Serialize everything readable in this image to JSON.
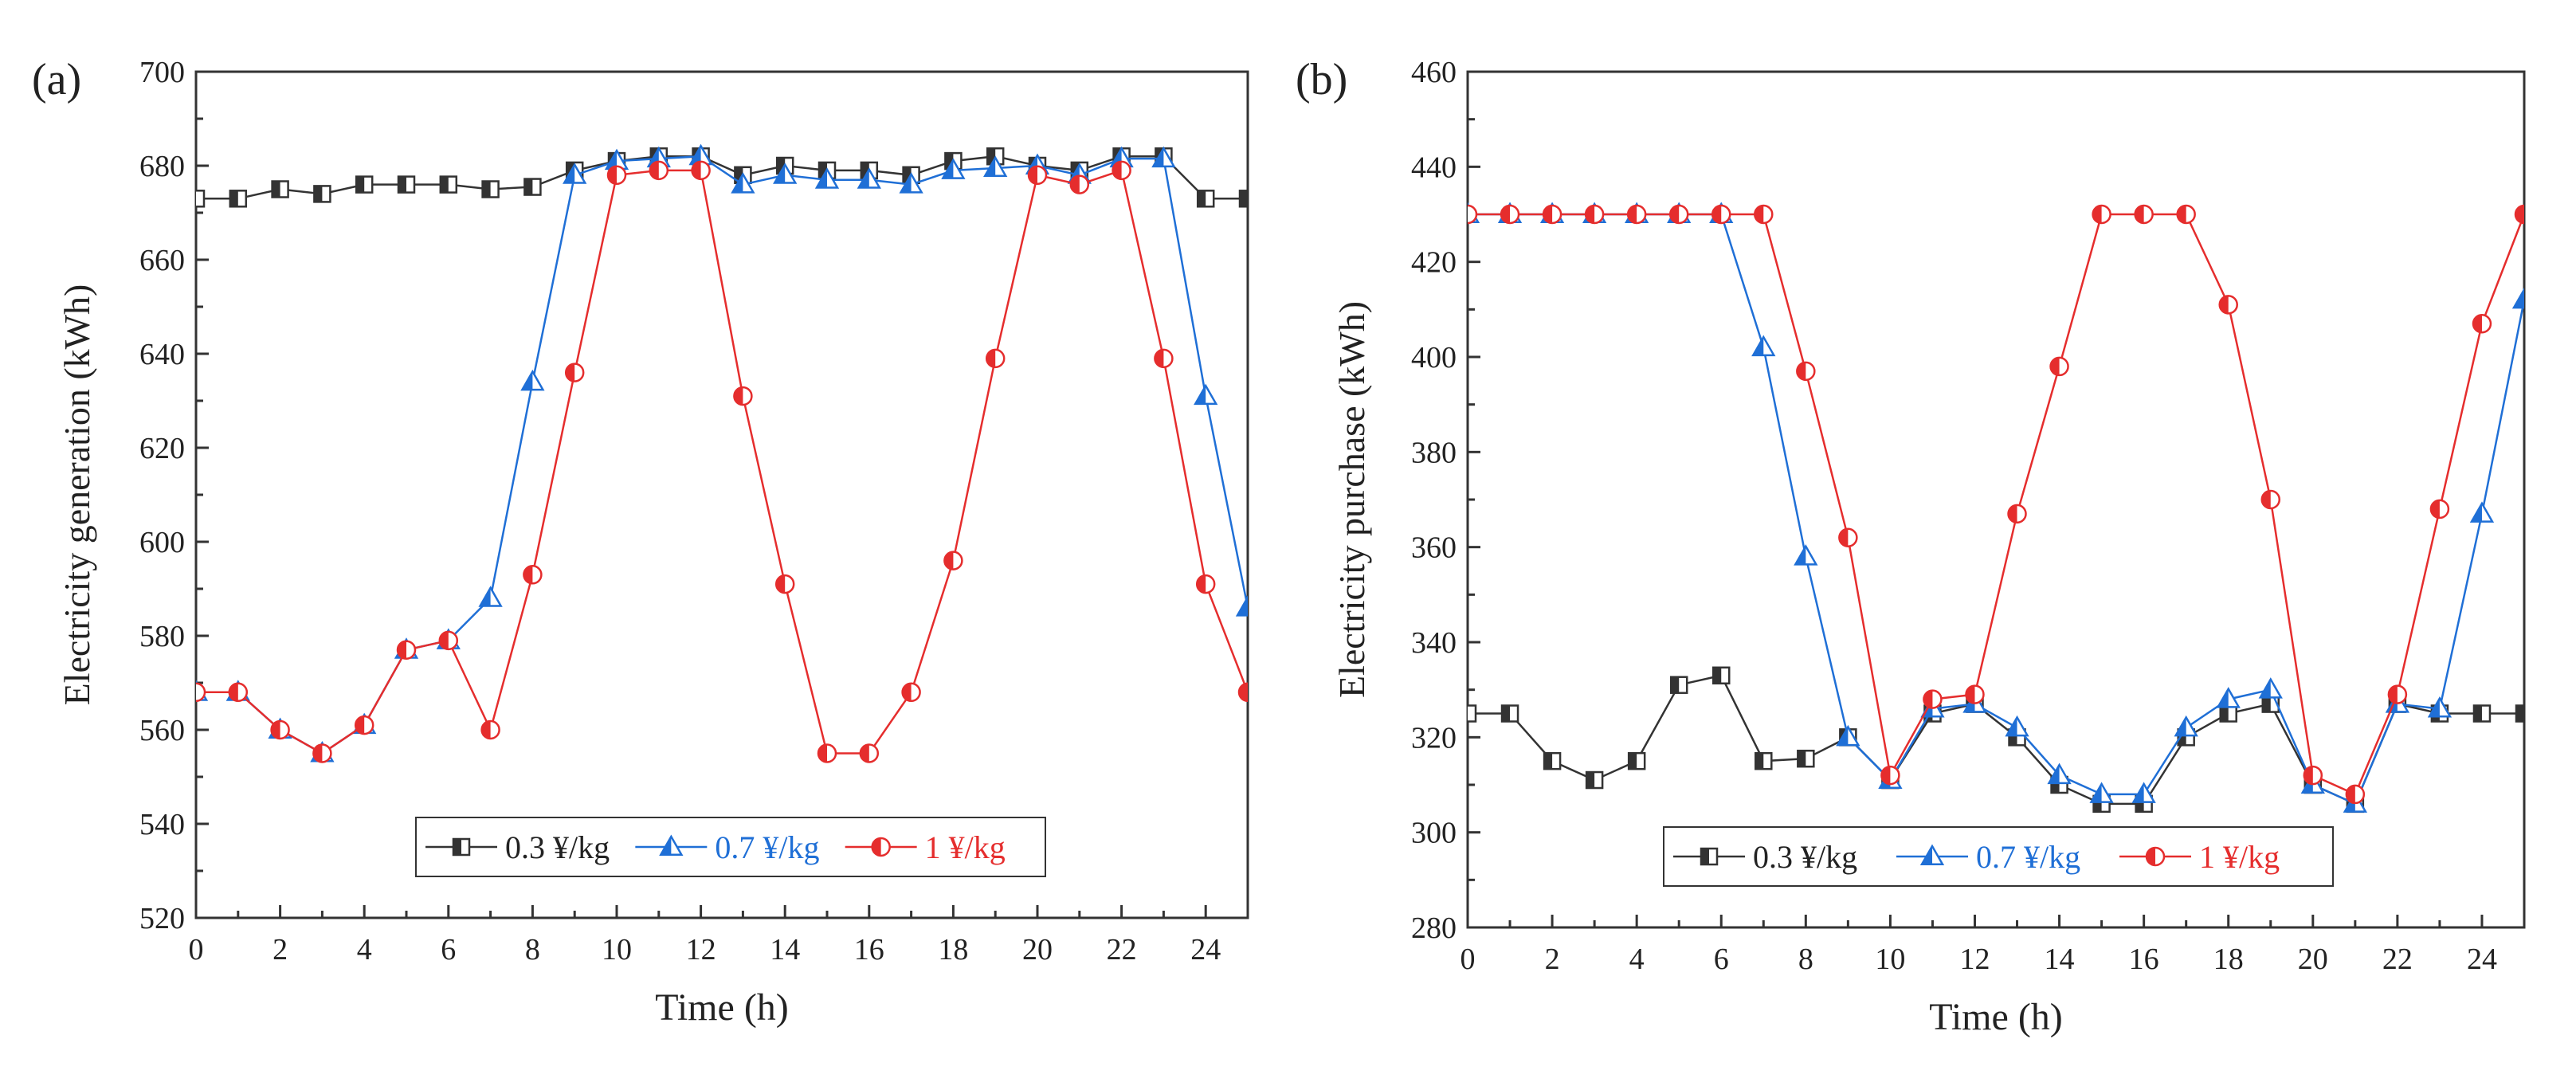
{
  "chart_data": [
    {
      "type": "line",
      "panel_label": "(a)",
      "xlabel": "Time (h)",
      "ylabel": "Electricity generation  (kWh)",
      "xlim": [
        0,
        25
      ],
      "ylim": [
        520,
        700
      ],
      "xticks": [
        0,
        2,
        4,
        6,
        8,
        10,
        12,
        14,
        16,
        18,
        20,
        22,
        24
      ],
      "yticks": [
        520,
        540,
        560,
        580,
        600,
        620,
        640,
        660,
        680,
        700
      ],
      "legend_position": "bottom-center",
      "grid": false,
      "x": [
        0,
        1,
        2,
        3,
        4,
        5,
        6,
        7,
        8,
        9,
        10,
        11,
        12,
        13,
        14,
        15,
        16,
        17,
        18,
        19,
        20,
        21,
        22,
        23,
        24,
        25
      ],
      "series": [
        {
          "name": "0.3 ¥/kg",
          "color": "#333333",
          "marker": "square",
          "values": [
            673,
            673,
            675,
            674,
            676,
            676,
            676,
            675,
            675.5,
            679,
            681,
            682,
            682,
            678,
            680,
            679,
            679,
            678,
            681,
            682,
            680,
            679,
            682,
            682,
            673,
            673
          ]
        },
        {
          "name": "0.7 ¥/kg",
          "color": "#1f6fd6",
          "marker": "triangle",
          "values": [
            568,
            568,
            560,
            555,
            561,
            577,
            579,
            588,
            634,
            678,
            681,
            681.5,
            682,
            676,
            678,
            677,
            677,
            676,
            679,
            679.5,
            680,
            678,
            681.5,
            681.5,
            631,
            586
          ]
        },
        {
          "name": "1 ¥/kg",
          "color": "#e52d2d",
          "marker": "circle",
          "values": [
            568,
            568,
            560,
            555,
            561,
            577,
            579,
            560,
            593,
            636,
            678,
            679,
            679,
            631,
            591,
            555,
            555,
            568,
            596,
            639,
            678,
            676,
            679,
            639,
            591,
            568
          ]
        }
      ]
    },
    {
      "type": "line",
      "panel_label": "(b)",
      "xlabel": "Time (h)",
      "ylabel": "Electricity purchase  (kWh)",
      "xlim": [
        0,
        25
      ],
      "ylim": [
        280,
        460
      ],
      "xticks": [
        0,
        2,
        4,
        6,
        8,
        10,
        12,
        14,
        16,
        18,
        20,
        22,
        24
      ],
      "yticks": [
        280,
        300,
        320,
        340,
        360,
        380,
        400,
        420,
        440,
        460
      ],
      "legend_position": "bottom-center",
      "grid": false,
      "x": [
        0,
        1,
        2,
        3,
        4,
        5,
        6,
        7,
        8,
        9,
        10,
        11,
        12,
        13,
        14,
        15,
        16,
        17,
        18,
        19,
        20,
        21,
        22,
        23,
        24,
        25
      ],
      "series": [
        {
          "name": "0.3  ¥/kg",
          "color": "#333333",
          "marker": "square",
          "values": [
            325,
            325,
            315,
            311,
            315,
            331,
            333,
            315,
            315.5,
            320,
            311,
            325,
            327,
            320,
            310,
            306,
            306,
            320,
            325,
            327,
            310,
            306,
            327,
            325,
            325,
            325
          ]
        },
        {
          "name": "0.7  ¥/kg",
          "color": "#1f6fd6",
          "marker": "triangle",
          "values": [
            430,
            430,
            430,
            430,
            430,
            430,
            430,
            402,
            358,
            320,
            311,
            326,
            327,
            322,
            312,
            308,
            308,
            322,
            328,
            330,
            310,
            306,
            327,
            326,
            367,
            412
          ]
        },
        {
          "name": "1  ¥/kg",
          "color": "#e52d2d",
          "marker": "circle",
          "values": [
            430,
            430,
            430,
            430,
            430,
            430,
            430,
            430,
            397,
            362,
            312,
            328,
            329,
            367,
            398,
            430,
            430,
            430,
            411,
            370,
            312,
            308,
            329,
            368,
            407,
            430
          ]
        }
      ]
    }
  ]
}
